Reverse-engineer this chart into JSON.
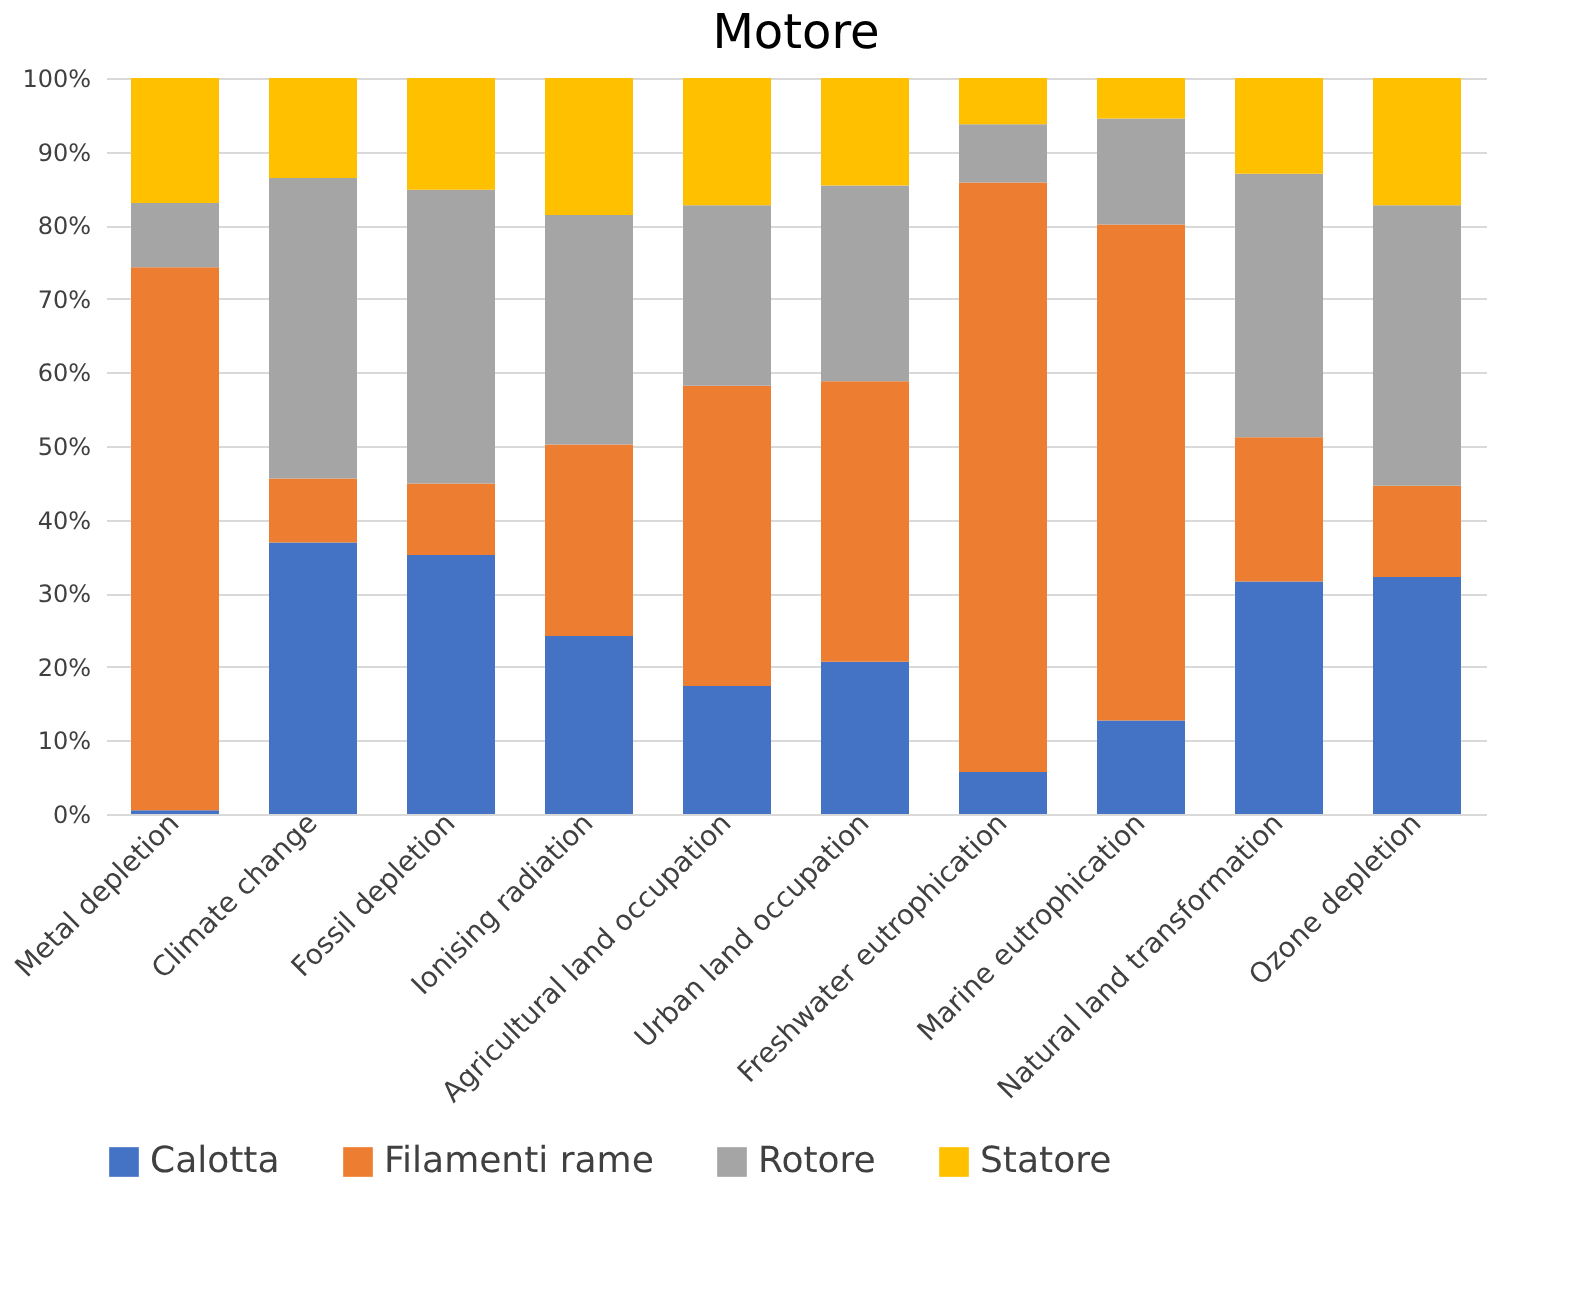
{
  "chart_data": {
    "type": "bar",
    "title": "Motore",
    "stacked": true,
    "categories": [
      "Metal depletion",
      "Climate change",
      "Fossil depletion",
      "Ionising radiation",
      "Agricultural land occupation",
      "Urban land occupation",
      "Freshwater eutrophication",
      "Marine eutrophication",
      "Natural land transformation",
      "Ozone depletion"
    ],
    "series": [
      {
        "name": "Calotta",
        "color": "#4472c4",
        "values": [
          0.5,
          36.9,
          35.2,
          24.2,
          17.4,
          20.7,
          5.7,
          12.7,
          31.6,
          32.2
        ]
      },
      {
        "name": "Filamenti rame",
        "color": "#ed7d31",
        "values": [
          73.8,
          8.7,
          9.7,
          26.0,
          40.8,
          38.1,
          80.1,
          67.4,
          19.6,
          12.4
        ]
      },
      {
        "name": "Rotore",
        "color": "#a5a5a5",
        "values": [
          8.7,
          40.8,
          39.9,
          31.2,
          24.5,
          26.6,
          7.9,
          14.4,
          35.8,
          38.1
        ]
      },
      {
        "name": "Statore",
        "color": "#ffc000",
        "values": [
          17.0,
          13.6,
          15.2,
          18.6,
          17.3,
          14.6,
          6.3,
          5.5,
          13.0,
          17.3
        ]
      }
    ],
    "ylim": [
      0,
      100
    ],
    "yticks": [
      {
        "value": 0,
        "label": "0%"
      },
      {
        "value": 10,
        "label": "10%"
      },
      {
        "value": 20,
        "label": "20%"
      },
      {
        "value": 30,
        "label": "30%"
      },
      {
        "value": 40,
        "label": "40%"
      },
      {
        "value": 50,
        "label": "50%"
      },
      {
        "value": 60,
        "label": "60%"
      },
      {
        "value": 70,
        "label": "70%"
      },
      {
        "value": 80,
        "label": "80%"
      },
      {
        "value": 90,
        "label": "90%"
      },
      {
        "value": 100,
        "label": "100%"
      }
    ],
    "grid": "y",
    "legend": "bottom"
  }
}
